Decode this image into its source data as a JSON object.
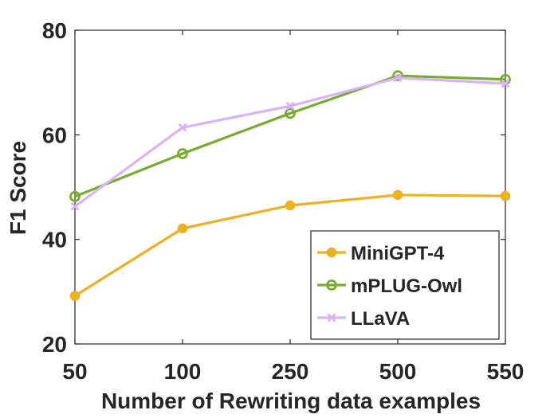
{
  "chart_data": {
    "type": "line",
    "title": "",
    "xlabel": "Number of Rewriting data examples",
    "ylabel": "F1 Score",
    "categories": [
      "50",
      "100",
      "250",
      "500",
      "550"
    ],
    "ylim": [
      20,
      80
    ],
    "yticks": [
      20,
      40,
      60,
      80
    ],
    "grid": false,
    "legend_position": "bottom-right",
    "series": [
      {
        "name": "MiniGPT-4",
        "values": [
          29.2,
          42.1,
          46.5,
          48.5,
          48.3
        ],
        "color": "#EDB120",
        "marker": "filled-circle"
      },
      {
        "name": "mPLUG-Owl",
        "values": [
          48.2,
          56.4,
          64.1,
          71.3,
          70.6
        ],
        "color": "#77AC30",
        "marker": "open-circle"
      },
      {
        "name": "LLaVA",
        "values": [
          46.3,
          61.4,
          65.5,
          70.9,
          69.8
        ],
        "color": "#D9B3F5",
        "marker": "cross"
      }
    ]
  }
}
